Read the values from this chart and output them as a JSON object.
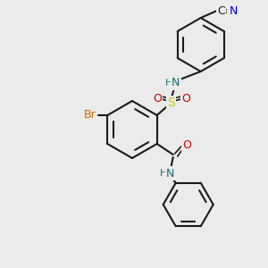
{
  "bg_color": "#ebebeb",
  "bond_color": "#1a1a1a",
  "bond_lw": 1.5,
  "atom_colors": {
    "C": "#1a1a1a",
    "N": "#1a6b6b",
    "O": "#cc0000",
    "S": "#cccc00",
    "Br": "#cc6600",
    "CN_C": "#1a1a1a",
    "CN_N": "#0000cc"
  },
  "font_size": 9,
  "font_size_small": 8
}
